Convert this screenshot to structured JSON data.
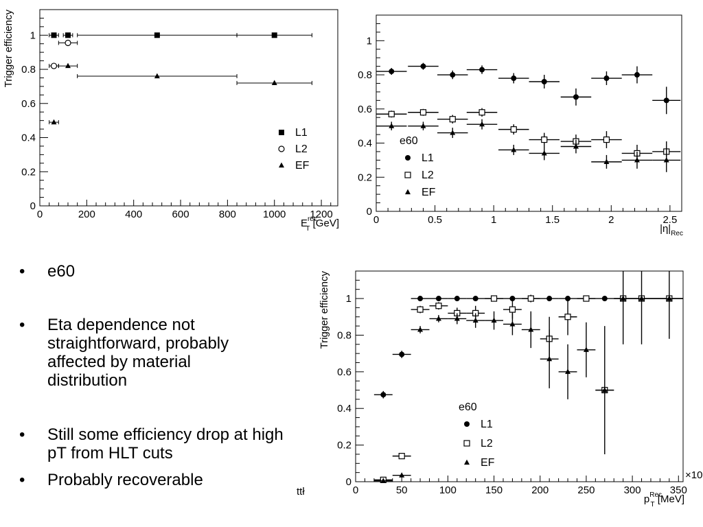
{
  "bullets": [
    {
      "text": "e60"
    },
    {
      "text": "Eta dependence not straightforward, probably affected by material distribution"
    },
    {
      "text": "Still some efficiency drop at high pT from HLT cuts"
    },
    {
      "text": "Probably recoverable"
    }
  ],
  "bullet_marker": "•",
  "stray_text": "ttł",
  "chart_data": [
    {
      "type": "scatter",
      "title": "",
      "ylabel": "Trigger efficiency",
      "xlabel_main": "E",
      "xlabel_sub": "T",
      "xlabel_sup": "rec",
      "xlabel_unit": "[GeV]",
      "xlim": [
        0,
        1270
      ],
      "ylim": [
        0,
        1.15
      ],
      "xticks": [
        0,
        200,
        400,
        600,
        800,
        1000,
        1200
      ],
      "yticks": [
        0,
        0.2,
        0.4,
        0.6,
        0.8,
        1
      ],
      "grid": false,
      "legend_position": "bottom-right",
      "legend_title": "",
      "series": [
        {
          "name": "L1",
          "marker": "square",
          "points": [
            {
              "x": 60,
              "y": 1.0,
              "xerr": 20,
              "yerr": 0.005
            },
            {
              "x": 120,
              "y": 1.0,
              "xerr": 20,
              "yerr": 0.005
            },
            {
              "x": 500,
              "y": 1.0,
              "xerr": 340,
              "yerr": 0.005
            },
            {
              "x": 1000,
              "y": 1.0,
              "xerr": 160,
              "yerr": 0.005
            }
          ]
        },
        {
          "name": "L2",
          "marker": "circle",
          "points": [
            {
              "x": 60,
              "y": 0.82,
              "xerr": 20,
              "yerr": 0.005
            },
            {
              "x": 120,
              "y": 0.955,
              "xerr": 40,
              "yerr": 0.005
            }
          ]
        },
        {
          "name": "EF",
          "marker": "triangle",
          "points": [
            {
              "x": 60,
              "y": 0.49,
              "xerr": 20,
              "yerr": 0.005
            },
            {
              "x": 120,
              "y": 0.82,
              "xerr": 40,
              "yerr": 0.005
            },
            {
              "x": 500,
              "y": 0.76,
              "xerr": 340,
              "yerr": 0.005
            },
            {
              "x": 1000,
              "y": 0.72,
              "xerr": 160,
              "yerr": 0.005
            }
          ]
        }
      ]
    },
    {
      "type": "scatter",
      "title": "",
      "ylabel": "",
      "xlabel_main": "|η|",
      "xlabel_sub": "Rec",
      "xlabel_sup": "",
      "xlabel_unit": "",
      "xlim": [
        0,
        2.6
      ],
      "ylim": [
        0,
        1.15
      ],
      "xticks": [
        0,
        0.5,
        1,
        1.5,
        2,
        2.5
      ],
      "yticks": [
        0,
        0.2,
        0.4,
        0.6,
        0.8,
        1
      ],
      "grid": false,
      "legend_position": "bottom-left",
      "legend_title": "e60",
      "series": [
        {
          "name": "L1",
          "marker": "circle-filled",
          "points": [
            {
              "x": 0.13,
              "y": 0.82,
              "xerr": 0.13,
              "yerr": 0.02
            },
            {
              "x": 0.4,
              "y": 0.85,
              "xerr": 0.13,
              "yerr": 0.02
            },
            {
              "x": 0.65,
              "y": 0.8,
              "xerr": 0.13,
              "yerr": 0.025
            },
            {
              "x": 0.9,
              "y": 0.83,
              "xerr": 0.13,
              "yerr": 0.025
            },
            {
              "x": 1.17,
              "y": 0.78,
              "xerr": 0.13,
              "yerr": 0.03
            },
            {
              "x": 1.43,
              "y": 0.76,
              "xerr": 0.13,
              "yerr": 0.04
            },
            {
              "x": 1.7,
              "y": 0.67,
              "xerr": 0.13,
              "yerr": 0.05
            },
            {
              "x": 1.96,
              "y": 0.78,
              "xerr": 0.13,
              "yerr": 0.04
            },
            {
              "x": 2.22,
              "y": 0.8,
              "xerr": 0.13,
              "yerr": 0.05
            },
            {
              "x": 2.47,
              "y": 0.65,
              "xerr": 0.12,
              "yerr": 0.08
            }
          ]
        },
        {
          "name": "L2",
          "marker": "square-open",
          "points": [
            {
              "x": 0.13,
              "y": 0.57,
              "xerr": 0.13,
              "yerr": 0.02
            },
            {
              "x": 0.4,
              "y": 0.58,
              "xerr": 0.13,
              "yerr": 0.02
            },
            {
              "x": 0.65,
              "y": 0.54,
              "xerr": 0.13,
              "yerr": 0.025
            },
            {
              "x": 0.9,
              "y": 0.58,
              "xerr": 0.13,
              "yerr": 0.025
            },
            {
              "x": 1.17,
              "y": 0.48,
              "xerr": 0.13,
              "yerr": 0.03
            },
            {
              "x": 1.43,
              "y": 0.42,
              "xerr": 0.13,
              "yerr": 0.04
            },
            {
              "x": 1.7,
              "y": 0.41,
              "xerr": 0.13,
              "yerr": 0.04
            },
            {
              "x": 1.96,
              "y": 0.42,
              "xerr": 0.13,
              "yerr": 0.05
            },
            {
              "x": 2.22,
              "y": 0.34,
              "xerr": 0.13,
              "yerr": 0.05
            },
            {
              "x": 2.47,
              "y": 0.35,
              "xerr": 0.12,
              "yerr": 0.06
            }
          ]
        },
        {
          "name": "EF",
          "marker": "triangle",
          "points": [
            {
              "x": 0.13,
              "y": 0.5,
              "xerr": 0.13,
              "yerr": 0.025
            },
            {
              "x": 0.4,
              "y": 0.5,
              "xerr": 0.13,
              "yerr": 0.025
            },
            {
              "x": 0.65,
              "y": 0.46,
              "xerr": 0.13,
              "yerr": 0.03
            },
            {
              "x": 0.9,
              "y": 0.51,
              "xerr": 0.13,
              "yerr": 0.03
            },
            {
              "x": 1.17,
              "y": 0.36,
              "xerr": 0.13,
              "yerr": 0.03
            },
            {
              "x": 1.43,
              "y": 0.34,
              "xerr": 0.13,
              "yerr": 0.04
            },
            {
              "x": 1.7,
              "y": 0.38,
              "xerr": 0.13,
              "yerr": 0.04
            },
            {
              "x": 1.96,
              "y": 0.29,
              "xerr": 0.13,
              "yerr": 0.04
            },
            {
              "x": 2.22,
              "y": 0.3,
              "xerr": 0.13,
              "yerr": 0.05
            },
            {
              "x": 2.47,
              "y": 0.3,
              "xerr": 0.12,
              "yerr": 0.07
            }
          ]
        }
      ]
    },
    {
      "type": "scatter",
      "title": "",
      "ylabel": "Trigger efficiency",
      "xlabel_main": "p",
      "xlabel_sub": "T",
      "xlabel_sup": "Rec",
      "xlabel_unit": "[MeV]",
      "axis_multiplier": "×10",
      "xlim": [
        0,
        355
      ],
      "ylim": [
        0,
        1.15
      ],
      "xticks": [
        0,
        50,
        100,
        150,
        200,
        250,
        300,
        350
      ],
      "yticks": [
        0,
        0.2,
        0.4,
        0.6,
        0.8,
        1
      ],
      "grid": false,
      "legend_position": "bottom-center",
      "legend_title": "e60",
      "series": [
        {
          "name": "L1",
          "marker": "circle-filled",
          "points": [
            {
              "x": 30,
              "y": 0.475,
              "xerr": 10,
              "yerr": 0.02
            },
            {
              "x": 50,
              "y": 0.695,
              "xerr": 10,
              "yerr": 0.02
            },
            {
              "x": 70,
              "y": 1.0,
              "xerr": 10,
              "yerr": 0.005
            },
            {
              "x": 90,
              "y": 1.0,
              "xerr": 10,
              "yerr": 0.005
            },
            {
              "x": 110,
              "y": 1.0,
              "xerr": 10,
              "yerr": 0.005
            },
            {
              "x": 130,
              "y": 1.0,
              "xerr": 10,
              "yerr": 0.005
            },
            {
              "x": 150,
              "y": 1.0,
              "xerr": 10,
              "yerr": 0.005
            },
            {
              "x": 170,
              "y": 1.0,
              "xerr": 10,
              "yerr": 0.005
            },
            {
              "x": 190,
              "y": 1.0,
              "xerr": 10,
              "yerr": 0.02
            },
            {
              "x": 210,
              "y": 1.0,
              "xerr": 10,
              "yerr": 0.01
            },
            {
              "x": 230,
              "y": 1.0,
              "xerr": 10,
              "yerr": 0.01
            },
            {
              "x": 250,
              "y": 1.0,
              "xerr": 10,
              "yerr": 0.01
            },
            {
              "x": 270,
              "y": 1.0,
              "xerr": 10,
              "yerr": 0.01
            },
            {
              "x": 290,
              "y": 1.0,
              "xerr": 10,
              "yerr": 0.01
            },
            {
              "x": 310,
              "y": 1.0,
              "xerr": 10,
              "yerr": 0.01
            },
            {
              "x": 340,
              "y": 1.0,
              "xerr": 20,
              "yerr": 0.01
            }
          ]
        },
        {
          "name": "L2",
          "marker": "square-open",
          "points": [
            {
              "x": 30,
              "y": 0.01,
              "xerr": 10,
              "yerr": 0.01
            },
            {
              "x": 50,
              "y": 0.14,
              "xerr": 10,
              "yerr": 0.015
            },
            {
              "x": 70,
              "y": 0.94,
              "xerr": 10,
              "yerr": 0.02
            },
            {
              "x": 90,
              "y": 0.96,
              "xerr": 10,
              "yerr": 0.02
            },
            {
              "x": 110,
              "y": 0.92,
              "xerr": 10,
              "yerr": 0.03
            },
            {
              "x": 130,
              "y": 0.92,
              "xerr": 10,
              "yerr": 0.04
            },
            {
              "x": 150,
              "y": 1.0,
              "xerr": 10,
              "yerr": 0.01
            },
            {
              "x": 170,
              "y": 0.94,
              "xerr": 10,
              "yerr": 0.05
            },
            {
              "x": 190,
              "y": 1.0,
              "xerr": 10,
              "yerr": 0.02
            },
            {
              "x": 210,
              "y": 0.78,
              "xerr": 10,
              "yerr": 0.12
            },
            {
              "x": 230,
              "y": 0.9,
              "xerr": 10,
              "yerr": 0.1
            },
            {
              "x": 250,
              "y": 1.0,
              "xerr": 10,
              "yerr": 0.01
            },
            {
              "x": 270,
              "y": 0.5,
              "xerr": 10,
              "yerr": 0.01
            },
            {
              "x": 290,
              "y": 1.0,
              "xerr": 10,
              "yerr": 0.01
            },
            {
              "x": 310,
              "y": 1.0,
              "xerr": 10,
              "yerr": 0.01
            },
            {
              "x": 340,
              "y": 1.0,
              "xerr": 20,
              "yerr": 0.01
            }
          ]
        },
        {
          "name": "EF",
          "marker": "triangle",
          "points": [
            {
              "x": 30,
              "y": 0.005,
              "xerr": 10,
              "yerr": 0.005
            },
            {
              "x": 50,
              "y": 0.035,
              "xerr": 10,
              "yerr": 0.01
            },
            {
              "x": 70,
              "y": 0.83,
              "xerr": 10,
              "yerr": 0.02
            },
            {
              "x": 90,
              "y": 0.89,
              "xerr": 10,
              "yerr": 0.02
            },
            {
              "x": 110,
              "y": 0.89,
              "xerr": 10,
              "yerr": 0.03
            },
            {
              "x": 130,
              "y": 0.88,
              "xerr": 10,
              "yerr": 0.04
            },
            {
              "x": 150,
              "y": 0.88,
              "xerr": 10,
              "yerr": 0.05
            },
            {
              "x": 170,
              "y": 0.86,
              "xerr": 10,
              "yerr": 0.06
            },
            {
              "x": 190,
              "y": 0.83,
              "xerr": 10,
              "yerr": 0.1
            },
            {
              "x": 210,
              "y": 0.67,
              "xerr": 10,
              "yerr": 0.16
            },
            {
              "x": 230,
              "y": 0.6,
              "xerr": 10,
              "yerr": 0.15
            },
            {
              "x": 250,
              "y": 0.72,
              "xerr": 10,
              "yerr": 0.15
            },
            {
              "x": 270,
              "y": 0.5,
              "xerr": 10,
              "yerr": 0.35
            },
            {
              "x": 290,
              "y": 1.0,
              "xerr": 10,
              "yerr": 0.25
            },
            {
              "x": 310,
              "y": 1.0,
              "xerr": 10,
              "yerr": 0.25
            },
            {
              "x": 340,
              "y": 1.0,
              "xerr": 20,
              "yerr": 0.22
            }
          ]
        }
      ]
    }
  ]
}
